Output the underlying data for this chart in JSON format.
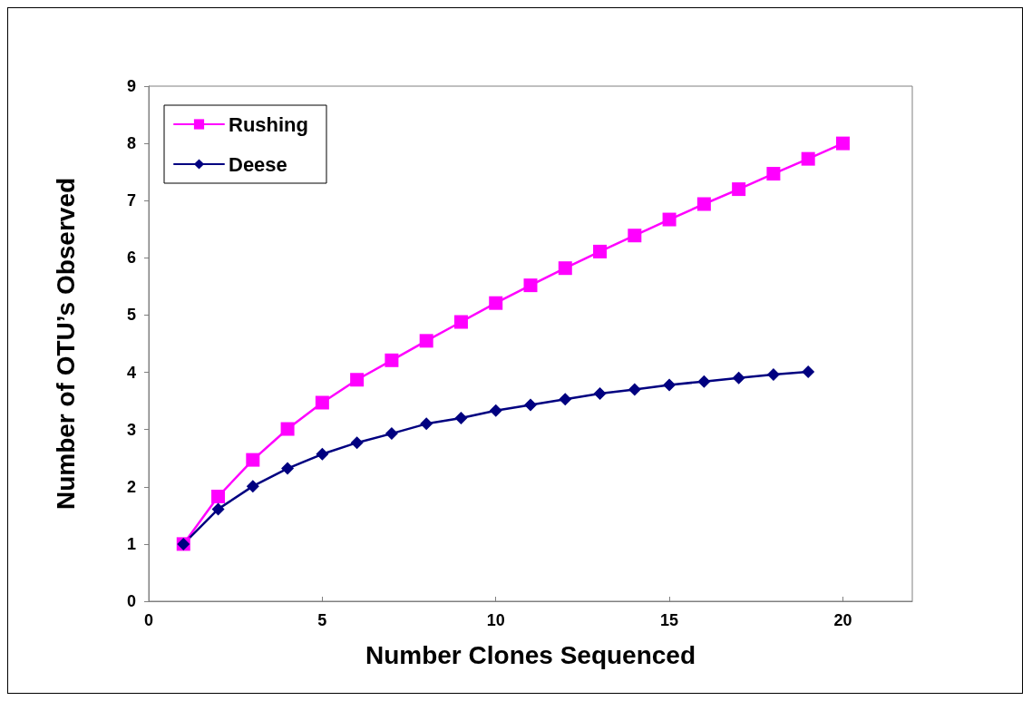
{
  "chart_data": {
    "type": "line",
    "xlabel": "Number Clones Sequenced",
    "ylabel": "Number of OTU’s Observed",
    "xlim": [
      0,
      22
    ],
    "xticks": [
      0,
      5,
      10,
      15,
      20
    ],
    "ylim": [
      0,
      9
    ],
    "yticks": [
      0,
      1,
      2,
      3,
      4,
      5,
      6,
      7,
      8,
      9
    ],
    "grid": false,
    "legend": "top left",
    "line_style": "solid",
    "series": [
      {
        "name": "Rushing",
        "color": "#ff00ff",
        "marker": "square",
        "x": [
          1,
          2,
          3,
          4,
          5,
          6,
          7,
          8,
          9,
          10,
          11,
          12,
          13,
          14,
          15,
          16,
          17,
          18,
          19,
          20
        ],
        "values": [
          1.0,
          1.83,
          2.47,
          3.01,
          3.47,
          3.87,
          4.21,
          4.55,
          4.88,
          5.21,
          5.52,
          5.82,
          6.11,
          6.39,
          6.67,
          6.94,
          7.2,
          7.47,
          7.73,
          8.0
        ]
      },
      {
        "name": "Deese",
        "color": "#000080",
        "marker": "diamond",
        "x": [
          1,
          2,
          3,
          4,
          5,
          6,
          7,
          8,
          9,
          10,
          11,
          12,
          13,
          14,
          15,
          16,
          17,
          18,
          19
        ],
        "values": [
          1.0,
          1.61,
          2.01,
          2.32,
          2.57,
          2.77,
          2.93,
          3.1,
          3.2,
          3.33,
          3.43,
          3.53,
          3.63,
          3.7,
          3.78,
          3.84,
          3.9,
          3.96,
          4.01
        ]
      }
    ]
  }
}
